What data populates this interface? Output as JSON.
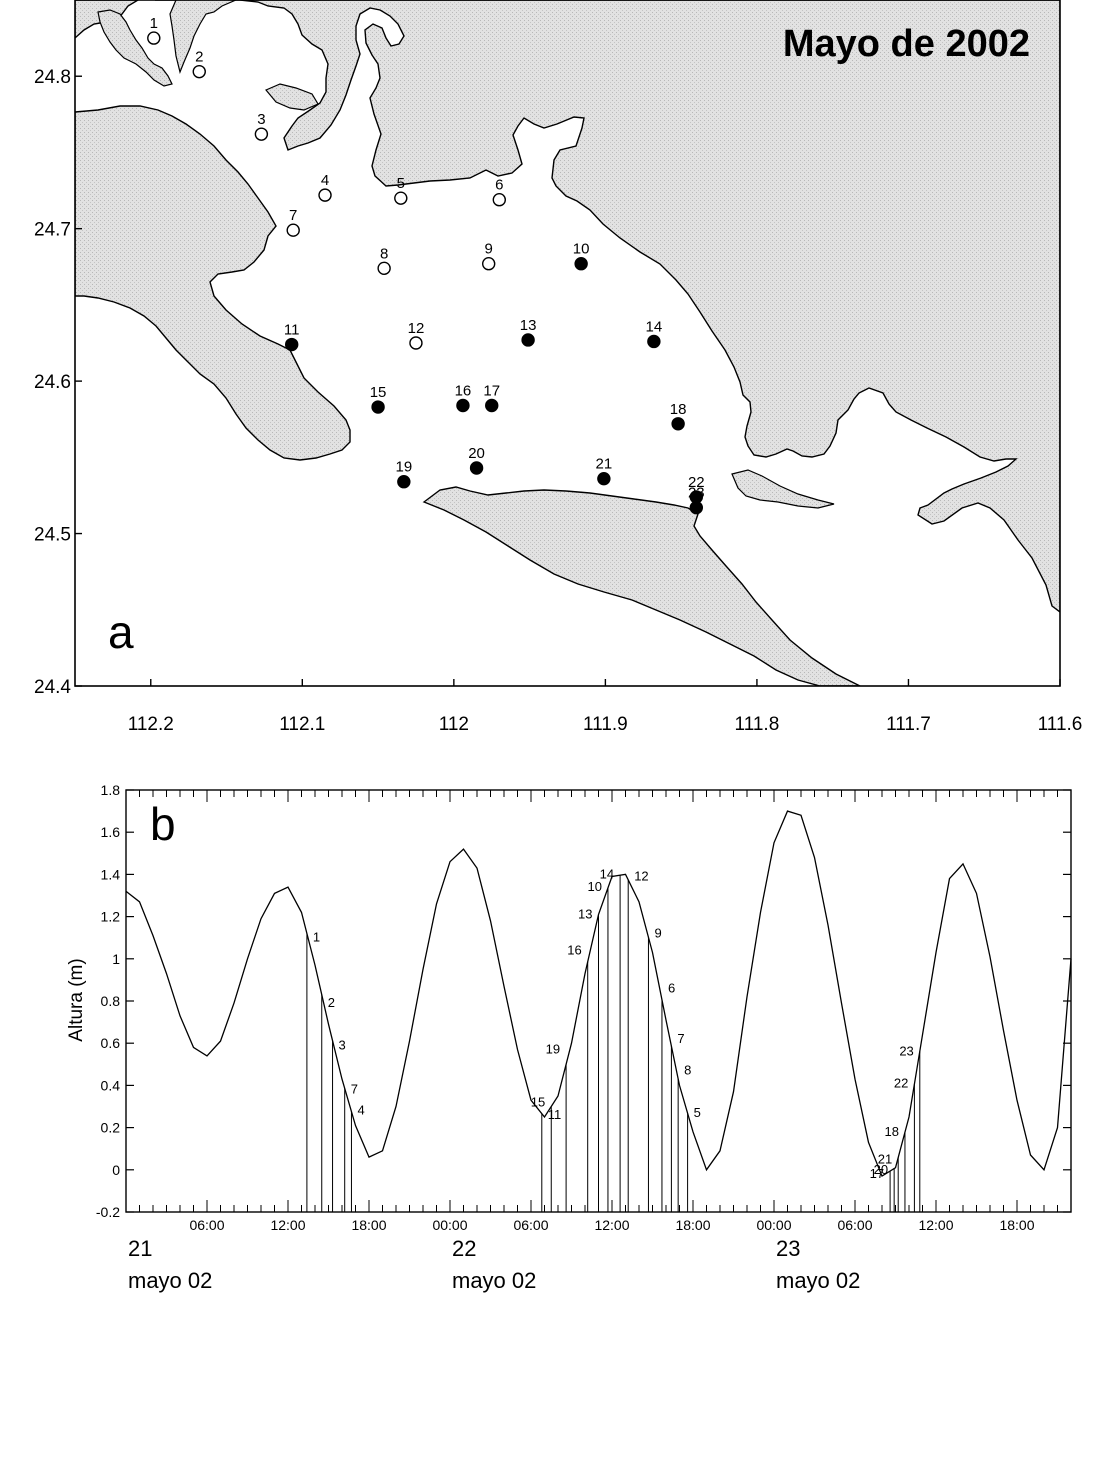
{
  "chart_data": [
    {
      "type": "scatter",
      "panel_label": "a",
      "title": "Mayo de 2002",
      "xlabel": "",
      "ylabel": "",
      "xlim": [
        112.25,
        111.6
      ],
      "ylim": [
        24.4,
        24.85
      ],
      "x_ticks": [
        112.2,
        112.1,
        112,
        111.9,
        111.8,
        111.7,
        111.6
      ],
      "x_tick_labels": [
        "112.2",
        "112.1",
        "112",
        "111.9",
        "111.8",
        "111.7",
        "111.6"
      ],
      "y_ticks": [
        24.4,
        24.5,
        24.6,
        24.7,
        24.8
      ],
      "y_tick_labels": [
        "24.4",
        "24.5",
        "24.6",
        "24.7",
        "24.8"
      ],
      "series": [
        {
          "marker": "open-circle"
        },
        {
          "marker": "filled-circle"
        }
      ],
      "stations": [
        {
          "id": "1",
          "lon": 112.198,
          "lat": 24.825,
          "filled": false
        },
        {
          "id": "2",
          "lon": 112.168,
          "lat": 24.803,
          "filled": false
        },
        {
          "id": "3",
          "lon": 112.127,
          "lat": 24.762,
          "filled": false
        },
        {
          "id": "4",
          "lon": 112.085,
          "lat": 24.722,
          "filled": false
        },
        {
          "id": "5",
          "lon": 112.035,
          "lat": 24.72,
          "filled": false
        },
        {
          "id": "6",
          "lon": 111.97,
          "lat": 24.719,
          "filled": false
        },
        {
          "id": "7",
          "lon": 112.106,
          "lat": 24.699,
          "filled": false
        },
        {
          "id": "8",
          "lon": 112.046,
          "lat": 24.674,
          "filled": false
        },
        {
          "id": "9",
          "lon": 111.977,
          "lat": 24.677,
          "filled": false
        },
        {
          "id": "10",
          "lon": 111.916,
          "lat": 24.677,
          "filled": true
        },
        {
          "id": "11",
          "lon": 112.107,
          "lat": 24.624,
          "filled": true
        },
        {
          "id": "12",
          "lon": 112.025,
          "lat": 24.625,
          "filled": false
        },
        {
          "id": "13",
          "lon": 111.951,
          "lat": 24.627,
          "filled": true
        },
        {
          "id": "14",
          "lon": 111.868,
          "lat": 24.626,
          "filled": true
        },
        {
          "id": "15",
          "lon": 112.05,
          "lat": 24.583,
          "filled": true
        },
        {
          "id": "16",
          "lon": 111.994,
          "lat": 24.584,
          "filled": true
        },
        {
          "id": "17",
          "lon": 111.975,
          "lat": 24.584,
          "filled": true
        },
        {
          "id": "18",
          "lon": 111.852,
          "lat": 24.572,
          "filled": true
        },
        {
          "id": "19",
          "lon": 112.033,
          "lat": 24.534,
          "filled": true
        },
        {
          "id": "20",
          "lon": 111.985,
          "lat": 24.543,
          "filled": true
        },
        {
          "id": "21",
          "lon": 111.901,
          "lat": 24.536,
          "filled": true
        },
        {
          "id": "22",
          "lon": 111.84,
          "lat": 24.524,
          "filled": true
        },
        {
          "id": "23",
          "lon": 111.84,
          "lat": 24.517,
          "filled": true
        }
      ]
    },
    {
      "type": "line",
      "panel_label": "b",
      "title": "",
      "xlabel": "",
      "ylabel": "Altura (m)",
      "xlim": [
        0,
        70
      ],
      "ylim": [
        -0.2,
        1.8
      ],
      "y_ticks": [
        -0.2,
        0,
        0.2,
        0.4,
        0.6,
        0.8,
        1,
        1.2,
        1.4,
        1.6,
        1.8
      ],
      "y_tick_labels": [
        "-0.2",
        "0",
        "0.2",
        "0.4",
        "0.6",
        "0.8",
        "1",
        "1.2",
        "1.4",
        "1.6",
        "1.8"
      ],
      "x_ticks": [
        6,
        12,
        18,
        24,
        30,
        36,
        42,
        48,
        54,
        60,
        66
      ],
      "x_tick_labels": [
        "06:00",
        "12:00",
        "18:00",
        "00:00",
        "06:00",
        "12:00",
        "18:00",
        "00:00",
        "06:00",
        "12:00",
        "18:00"
      ],
      "day_labels": [
        {
          "day": "21",
          "text": "mayo 02"
        },
        {
          "day": "22",
          "text": "mayo 02"
        },
        {
          "day": "23",
          "text": "mayo 02"
        }
      ],
      "x_units": "hours from 00:00 21 mayo 2002",
      "series": [
        {
          "x": [
            0,
            1,
            2,
            3,
            4,
            5,
            6,
            7,
            8,
            9,
            10,
            11,
            12,
            13,
            14,
            15,
            16,
            17,
            18,
            19,
            20,
            21,
            22,
            23,
            24,
            25,
            26,
            27,
            28,
            29,
            30,
            31,
            32,
            33,
            34,
            35,
            36,
            37,
            38,
            39,
            40,
            41,
            42,
            43,
            44,
            45,
            46,
            47,
            48,
            49,
            50,
            51,
            52,
            53,
            54,
            55,
            56,
            57,
            58,
            59,
            60,
            61,
            62,
            63,
            64,
            65,
            66,
            67,
            68,
            69,
            70
          ],
          "values": [
            1.32,
            1.27,
            1.11,
            0.93,
            0.73,
            0.58,
            0.54,
            0.61,
            0.79,
            1.0,
            1.19,
            1.31,
            1.34,
            1.22,
            0.97,
            0.69,
            0.43,
            0.21,
            0.06,
            0.09,
            0.3,
            0.61,
            0.95,
            1.26,
            1.46,
            1.52,
            1.43,
            1.18,
            0.87,
            0.57,
            0.33,
            0.25,
            0.35,
            0.6,
            0.93,
            1.21,
            1.39,
            1.4,
            1.27,
            1.03,
            0.71,
            0.4,
            0.18,
            0.0,
            0.09,
            0.37,
            0.82,
            1.22,
            1.55,
            1.7,
            1.68,
            1.48,
            1.16,
            0.79,
            0.43,
            0.13,
            -0.03,
            0.01,
            0.25,
            0.64,
            1.03,
            1.38,
            1.45,
            1.31,
            1.01,
            0.66,
            0.33,
            0.07,
            0.0,
            0.2,
            1.0
          ]
        }
      ],
      "sampling_marks": [
        {
          "label": "1",
          "t": 13.4,
          "h": 1.1
        },
        {
          "label": "2",
          "t": 14.5,
          "h": 0.79
        },
        {
          "label": "3",
          "t": 15.3,
          "h": 0.59
        },
        {
          "label": "7",
          "t": 16.2,
          "h": 0.38
        },
        {
          "label": "4",
          "t": 16.7,
          "h": 0.28
        },
        {
          "label": "11",
          "t": 30.8,
          "h": 0.26
        },
        {
          "label": "15",
          "t": 31.5,
          "h": 0.32
        },
        {
          "label": "19",
          "t": 32.6,
          "h": 0.57
        },
        {
          "label": "16",
          "t": 34.2,
          "h": 1.04
        },
        {
          "label": "13",
          "t": 35.0,
          "h": 1.21
        },
        {
          "label": "10",
          "t": 35.7,
          "h": 1.34
        },
        {
          "label": "14",
          "t": 36.6,
          "h": 1.4
        },
        {
          "label": "12",
          "t": 37.2,
          "h": 1.39
        },
        {
          "label": "9",
          "t": 38.7,
          "h": 1.12
        },
        {
          "label": "6",
          "t": 39.7,
          "h": 0.86
        },
        {
          "label": "7",
          "t": 40.4,
          "h": 0.62
        },
        {
          "label": "8",
          "t": 40.9,
          "h": 0.47
        },
        {
          "label": "5",
          "t": 41.6,
          "h": 0.27
        },
        {
          "label": "17",
          "t": 56.6,
          "h": -0.02
        },
        {
          "label": "20",
          "t": 56.9,
          "h": 0.0
        },
        {
          "label": "21",
          "t": 57.2,
          "h": 0.05
        },
        {
          "label": "18",
          "t": 57.7,
          "h": 0.18
        },
        {
          "label": "22",
          "t": 58.4,
          "h": 0.41
        },
        {
          "label": "23",
          "t": 58.8,
          "h": 0.56
        }
      ]
    }
  ]
}
